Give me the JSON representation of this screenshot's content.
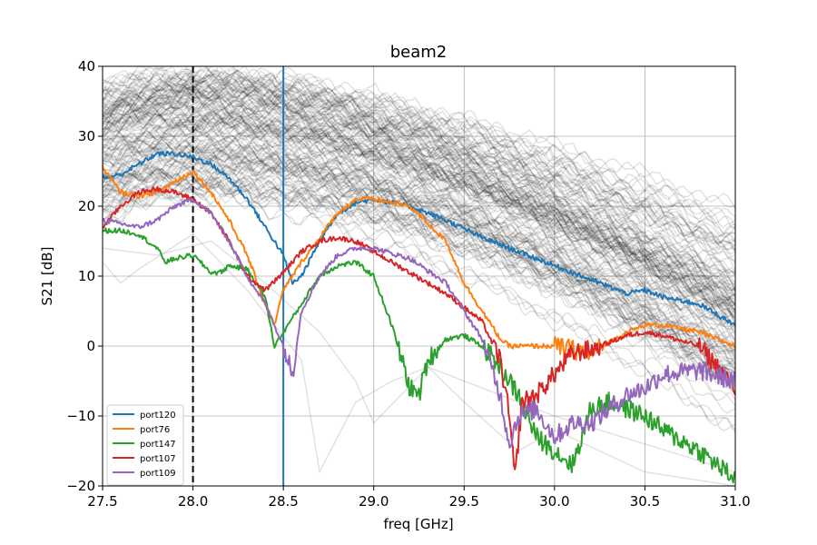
{
  "chart_data": {
    "type": "line",
    "title": "beam2",
    "xlabel": "freq [GHz]",
    "ylabel": "S21 [dB]",
    "xlim": [
      27.5,
      31.0
    ],
    "ylim": [
      -20,
      40
    ],
    "xticks": [
      27.5,
      28.0,
      28.5,
      29.0,
      29.5,
      30.0,
      30.5,
      31.0
    ],
    "xtick_labels": [
      "27.5",
      "28.0",
      "28.5",
      "29.0",
      "29.5",
      "30.0",
      "30.5",
      "31.0"
    ],
    "yticks": [
      -20,
      -10,
      0,
      10,
      20,
      30,
      40
    ],
    "ytick_labels": [
      "−20",
      "−10",
      "0",
      "10",
      "20",
      "30",
      "40"
    ],
    "grid": true,
    "legend_position": "lower-left",
    "vlines": [
      {
        "x": 28.0,
        "color": "#000000",
        "style": "dashed"
      },
      {
        "x": 28.5,
        "color": "#1f77b4",
        "style": "solid"
      }
    ],
    "background_series": {
      "color": "#000000",
      "description_count": 150,
      "peak_dB_range": [
        22,
        40
      ],
      "notch_examples": [
        {
          "x": [
            27.5,
            27.6,
            27.7,
            28.0,
            28.3,
            28.6,
            28.7,
            28.9,
            29.1,
            29.3,
            29.5,
            29.8,
            30.0,
            30.5,
            31.0
          ],
          "y": [
            12,
            9,
            11,
            16,
            8,
            -2,
            -18,
            -8,
            -5,
            -3,
            -8,
            -15,
            -12,
            -18,
            -20
          ]
        },
        {
          "x": [
            27.5,
            27.8,
            28.1,
            28.4,
            28.7,
            28.9,
            29.0,
            29.3,
            29.6,
            30.0,
            30.5,
            31.0
          ],
          "y": [
            14,
            13,
            15,
            9,
            2,
            -5,
            -11,
            -3,
            -6,
            -10,
            -14,
            -18
          ]
        }
      ]
    },
    "series": [
      {
        "name": "port120",
        "color": "#1f77b4",
        "x": [
          27.5,
          27.6,
          27.7,
          27.8,
          27.9,
          28.0,
          28.1,
          28.2,
          28.3,
          28.4,
          28.5,
          28.55,
          28.6,
          28.7,
          28.8,
          28.9,
          29.0,
          29.2,
          29.4,
          29.6,
          29.8,
          30.0,
          30.2,
          30.4,
          30.5,
          30.6,
          30.8,
          31.0
        ],
        "y": [
          24,
          24.5,
          26,
          27.5,
          27.5,
          27,
          26,
          24,
          21,
          17,
          13,
          9,
          10,
          15,
          19,
          20.5,
          21,
          20,
          18,
          15.5,
          13.5,
          11.5,
          9.5,
          7.5,
          8,
          7,
          6,
          3
        ]
      },
      {
        "name": "port76",
        "color": "#ff7f0e",
        "x": [
          27.5,
          27.6,
          27.7,
          27.8,
          27.9,
          28.0,
          28.1,
          28.2,
          28.3,
          28.4,
          28.45,
          28.5,
          28.6,
          28.7,
          28.8,
          28.9,
          29.0,
          29.2,
          29.4,
          29.5,
          29.6,
          29.7,
          29.75,
          29.8,
          30.0,
          30.2,
          30.4,
          30.5,
          30.6,
          30.8,
          31.0
        ],
        "y": [
          25.5,
          22,
          21.5,
          22,
          23.5,
          25,
          22,
          18,
          13,
          6,
          3,
          8,
          12,
          15.5,
          19,
          21,
          21,
          20,
          15,
          9,
          5,
          1,
          0,
          0,
          0,
          -1,
          2,
          3,
          3,
          2,
          0
        ]
      },
      {
        "name": "port147",
        "color": "#2ca02c",
        "x": [
          27.5,
          27.6,
          27.7,
          27.8,
          27.85,
          27.9,
          28.0,
          28.1,
          28.15,
          28.2,
          28.3,
          28.4,
          28.45,
          28.5,
          28.6,
          28.7,
          28.8,
          28.9,
          29.0,
          29.1,
          29.2,
          29.25,
          29.3,
          29.4,
          29.5,
          29.6,
          29.7,
          29.8,
          29.9,
          30.0,
          30.1,
          30.2,
          30.3,
          30.4,
          30.5,
          30.6,
          30.8,
          31.0
        ],
        "y": [
          16.5,
          16.5,
          16,
          14,
          12,
          12.5,
          13,
          10.5,
          10.5,
          11.5,
          11,
          7,
          0,
          2,
          6,
          10,
          11.5,
          12,
          10,
          3,
          -6,
          -7,
          -2,
          1,
          1.5,
          0,
          -3,
          -7,
          -13,
          -15,
          -17,
          -9,
          -8,
          -9,
          -10,
          -12,
          -15,
          -19
        ]
      },
      {
        "name": "port107",
        "color": "#d62728",
        "x": [
          27.5,
          27.6,
          27.7,
          27.8,
          27.9,
          28.0,
          28.1,
          28.2,
          28.3,
          28.4,
          28.5,
          28.6,
          28.7,
          28.8,
          28.9,
          29.0,
          29.2,
          29.4,
          29.6,
          29.7,
          29.75,
          29.78,
          29.82,
          29.9,
          30.0,
          30.1,
          30.2,
          30.4,
          30.5,
          30.6,
          30.8,
          31.0
        ],
        "y": [
          17,
          20,
          22,
          22.5,
          22,
          21,
          19,
          15,
          10,
          8,
          10.5,
          13.5,
          15,
          15.5,
          15,
          13.5,
          10.5,
          7.5,
          3.5,
          -2,
          -10,
          -19,
          -8,
          -7,
          -4,
          -1,
          -0.5,
          1.5,
          2,
          1.5,
          0,
          -6
        ]
      },
      {
        "name": "port109",
        "color": "#9467bd",
        "x": [
          27.5,
          27.6,
          27.7,
          27.8,
          27.9,
          28.0,
          28.1,
          28.2,
          28.3,
          28.4,
          28.5,
          28.55,
          28.6,
          28.7,
          28.8,
          28.9,
          29.0,
          29.2,
          29.4,
          29.6,
          29.7,
          29.75,
          29.8,
          29.9,
          30.0,
          30.1,
          30.2,
          30.3,
          30.4,
          30.5,
          30.6,
          30.8,
          31.0
        ],
        "y": [
          18,
          17.5,
          17,
          18,
          20,
          21,
          19,
          15,
          10,
          6,
          0,
          -4,
          5,
          10,
          13,
          14,
          14,
          12.5,
          9,
          1,
          -7,
          -14,
          -10,
          -9,
          -13,
          -11,
          -11,
          -9,
          -7,
          -6,
          -4,
          -3.5,
          -5
        ]
      }
    ]
  }
}
